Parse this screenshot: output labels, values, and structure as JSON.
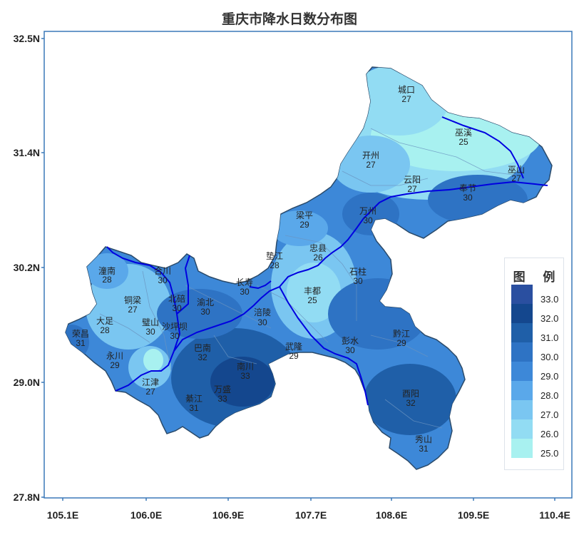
{
  "title": "重庆市降水日数分布图",
  "y_axis_ticks": [
    "32.5N",
    "31.4N",
    "30.2N",
    "29.0N",
    "27.8N"
  ],
  "x_axis_ticks": [
    "105.1E",
    "106.0E",
    "106.9E",
    "107.7E",
    "108.6E",
    "109.5E",
    "110.4E"
  ],
  "legend": {
    "title": "图 例",
    "items": [
      {
        "value": "33.0",
        "color": "#2a4fa0"
      },
      {
        "value": "32.0",
        "color": "#14478e"
      },
      {
        "value": "31.0",
        "color": "#1f5fa8"
      },
      {
        "value": "30.0",
        "color": "#2e73c4"
      },
      {
        "value": "29.0",
        "color": "#3d88d8"
      },
      {
        "value": "28.0",
        "color": "#5aa8ea"
      },
      {
        "value": "27.0",
        "color": "#7ac6f1"
      },
      {
        "value": "26.0",
        "color": "#92dcf3"
      },
      {
        "value": "25.0",
        "color": "#a8f1f0"
      }
    ]
  },
  "stations": [
    {
      "name": "城口",
      "value": "27",
      "color": "#92dcf3"
    },
    {
      "name": "巫溪",
      "value": "25",
      "color": "#a8f1f0"
    },
    {
      "name": "开州",
      "value": "27",
      "color": "#7ac6f1"
    },
    {
      "name": "云阳",
      "value": "27",
      "color": "#7ac6f1"
    },
    {
      "name": "巫山",
      "value": "27",
      "color": "#7ac6f1"
    },
    {
      "name": "奉节",
      "value": "30",
      "color": "#2e73c4"
    },
    {
      "name": "万州",
      "value": "30",
      "color": "#2e73c4"
    },
    {
      "name": "梁平",
      "value": "29",
      "color": "#3d88d8"
    },
    {
      "name": "垫江",
      "value": "28",
      "color": "#5aa8ea"
    },
    {
      "name": "忠县",
      "value": "26",
      "color": "#92dcf3"
    },
    {
      "name": "石柱",
      "value": "30",
      "color": "#2e73c4"
    },
    {
      "name": "丰都",
      "value": "25",
      "color": "#a8f1f0"
    },
    {
      "name": "长寿",
      "value": "30",
      "color": "#2e73c4"
    },
    {
      "name": "潼南",
      "value": "28",
      "color": "#5aa8ea"
    },
    {
      "name": "合川",
      "value": "30",
      "color": "#3d88d8"
    },
    {
      "name": "北碚",
      "value": "30",
      "color": "#2e73c4"
    },
    {
      "name": "渝北",
      "value": "30",
      "color": "#2e73c4"
    },
    {
      "name": "铜梁",
      "value": "27",
      "color": "#7ac6f1"
    },
    {
      "name": "大足",
      "value": "28",
      "color": "#5aa8ea"
    },
    {
      "name": "璧山",
      "value": "30",
      "color": "#3d88d8"
    },
    {
      "name": "沙坪坝",
      "value": "30",
      "color": "#2e73c4"
    },
    {
      "name": "涪陵",
      "value": "30",
      "color": "#3d88d8"
    },
    {
      "name": "荣昌",
      "value": "31",
      "color": "#2e73c4"
    },
    {
      "name": "永川",
      "value": "29",
      "color": "#5aa8ea"
    },
    {
      "name": "巴南",
      "value": "32",
      "color": "#1f5fa8"
    },
    {
      "name": "南川",
      "value": "33",
      "color": "#14478e"
    },
    {
      "name": "江津",
      "value": "27",
      "color": "#7ac6f1"
    },
    {
      "name": "万盛",
      "value": "33",
      "color": "#14478e"
    },
    {
      "name": "綦江",
      "value": "31",
      "color": "#2e73c4"
    },
    {
      "name": "武隆",
      "value": "29",
      "color": "#3d88d8"
    },
    {
      "name": "彭水",
      "value": "30",
      "color": "#2e73c4"
    },
    {
      "name": "黔江",
      "value": "29",
      "color": "#3d88d8"
    },
    {
      "name": "酉阳",
      "value": "32",
      "color": "#1f5fa8"
    },
    {
      "name": "秀山",
      "value": "31",
      "color": "#2e73c4"
    }
  ]
}
